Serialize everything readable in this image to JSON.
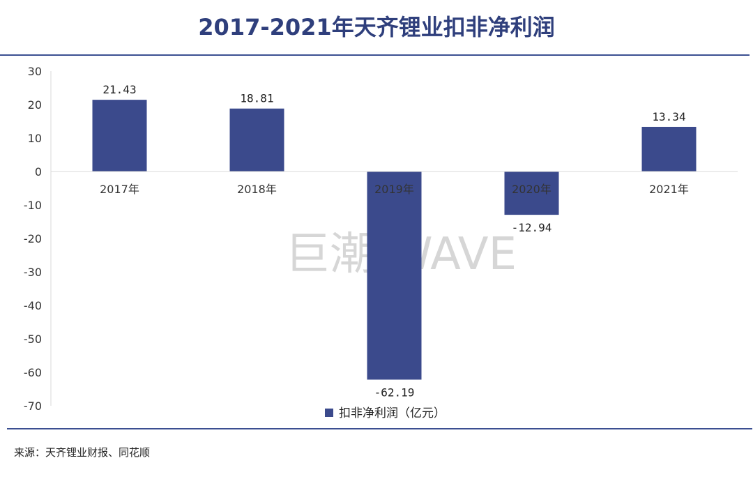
{
  "page": {
    "title": "2017-2021年天齐锂业扣非净利润",
    "source": "来源：天齐锂业财报、同花顺",
    "watermark": "巨潮 WAVE"
  },
  "colors": {
    "bar": "#3b4a8c",
    "title": "#2f3f7c",
    "rule": "#3b4f91"
  },
  "chart_data": {
    "type": "bar",
    "title": "2017-2021年天齐锂业扣非净利润",
    "categories": [
      "2017年",
      "2018年",
      "2019年",
      "2020年",
      "2021年"
    ],
    "series": [
      {
        "name": "扣非净利润（亿元）",
        "values": [
          21.43,
          18.81,
          -62.19,
          -12.94,
          13.34
        ],
        "labels": [
          "21.43",
          "18.81",
          "-62.19",
          "-12.94",
          "13.34"
        ]
      }
    ],
    "ylim": [
      -70,
      30
    ],
    "yticks": [
      30,
      20,
      10,
      0,
      -10,
      -20,
      -30,
      -40,
      -50,
      -60,
      -70
    ],
    "ytick_labels": [
      "30",
      "20",
      "10",
      "0",
      "-10",
      "-20",
      "-30",
      "-40",
      "-50",
      "-60",
      "-70"
    ],
    "grid": false,
    "legend": "bottom"
  }
}
